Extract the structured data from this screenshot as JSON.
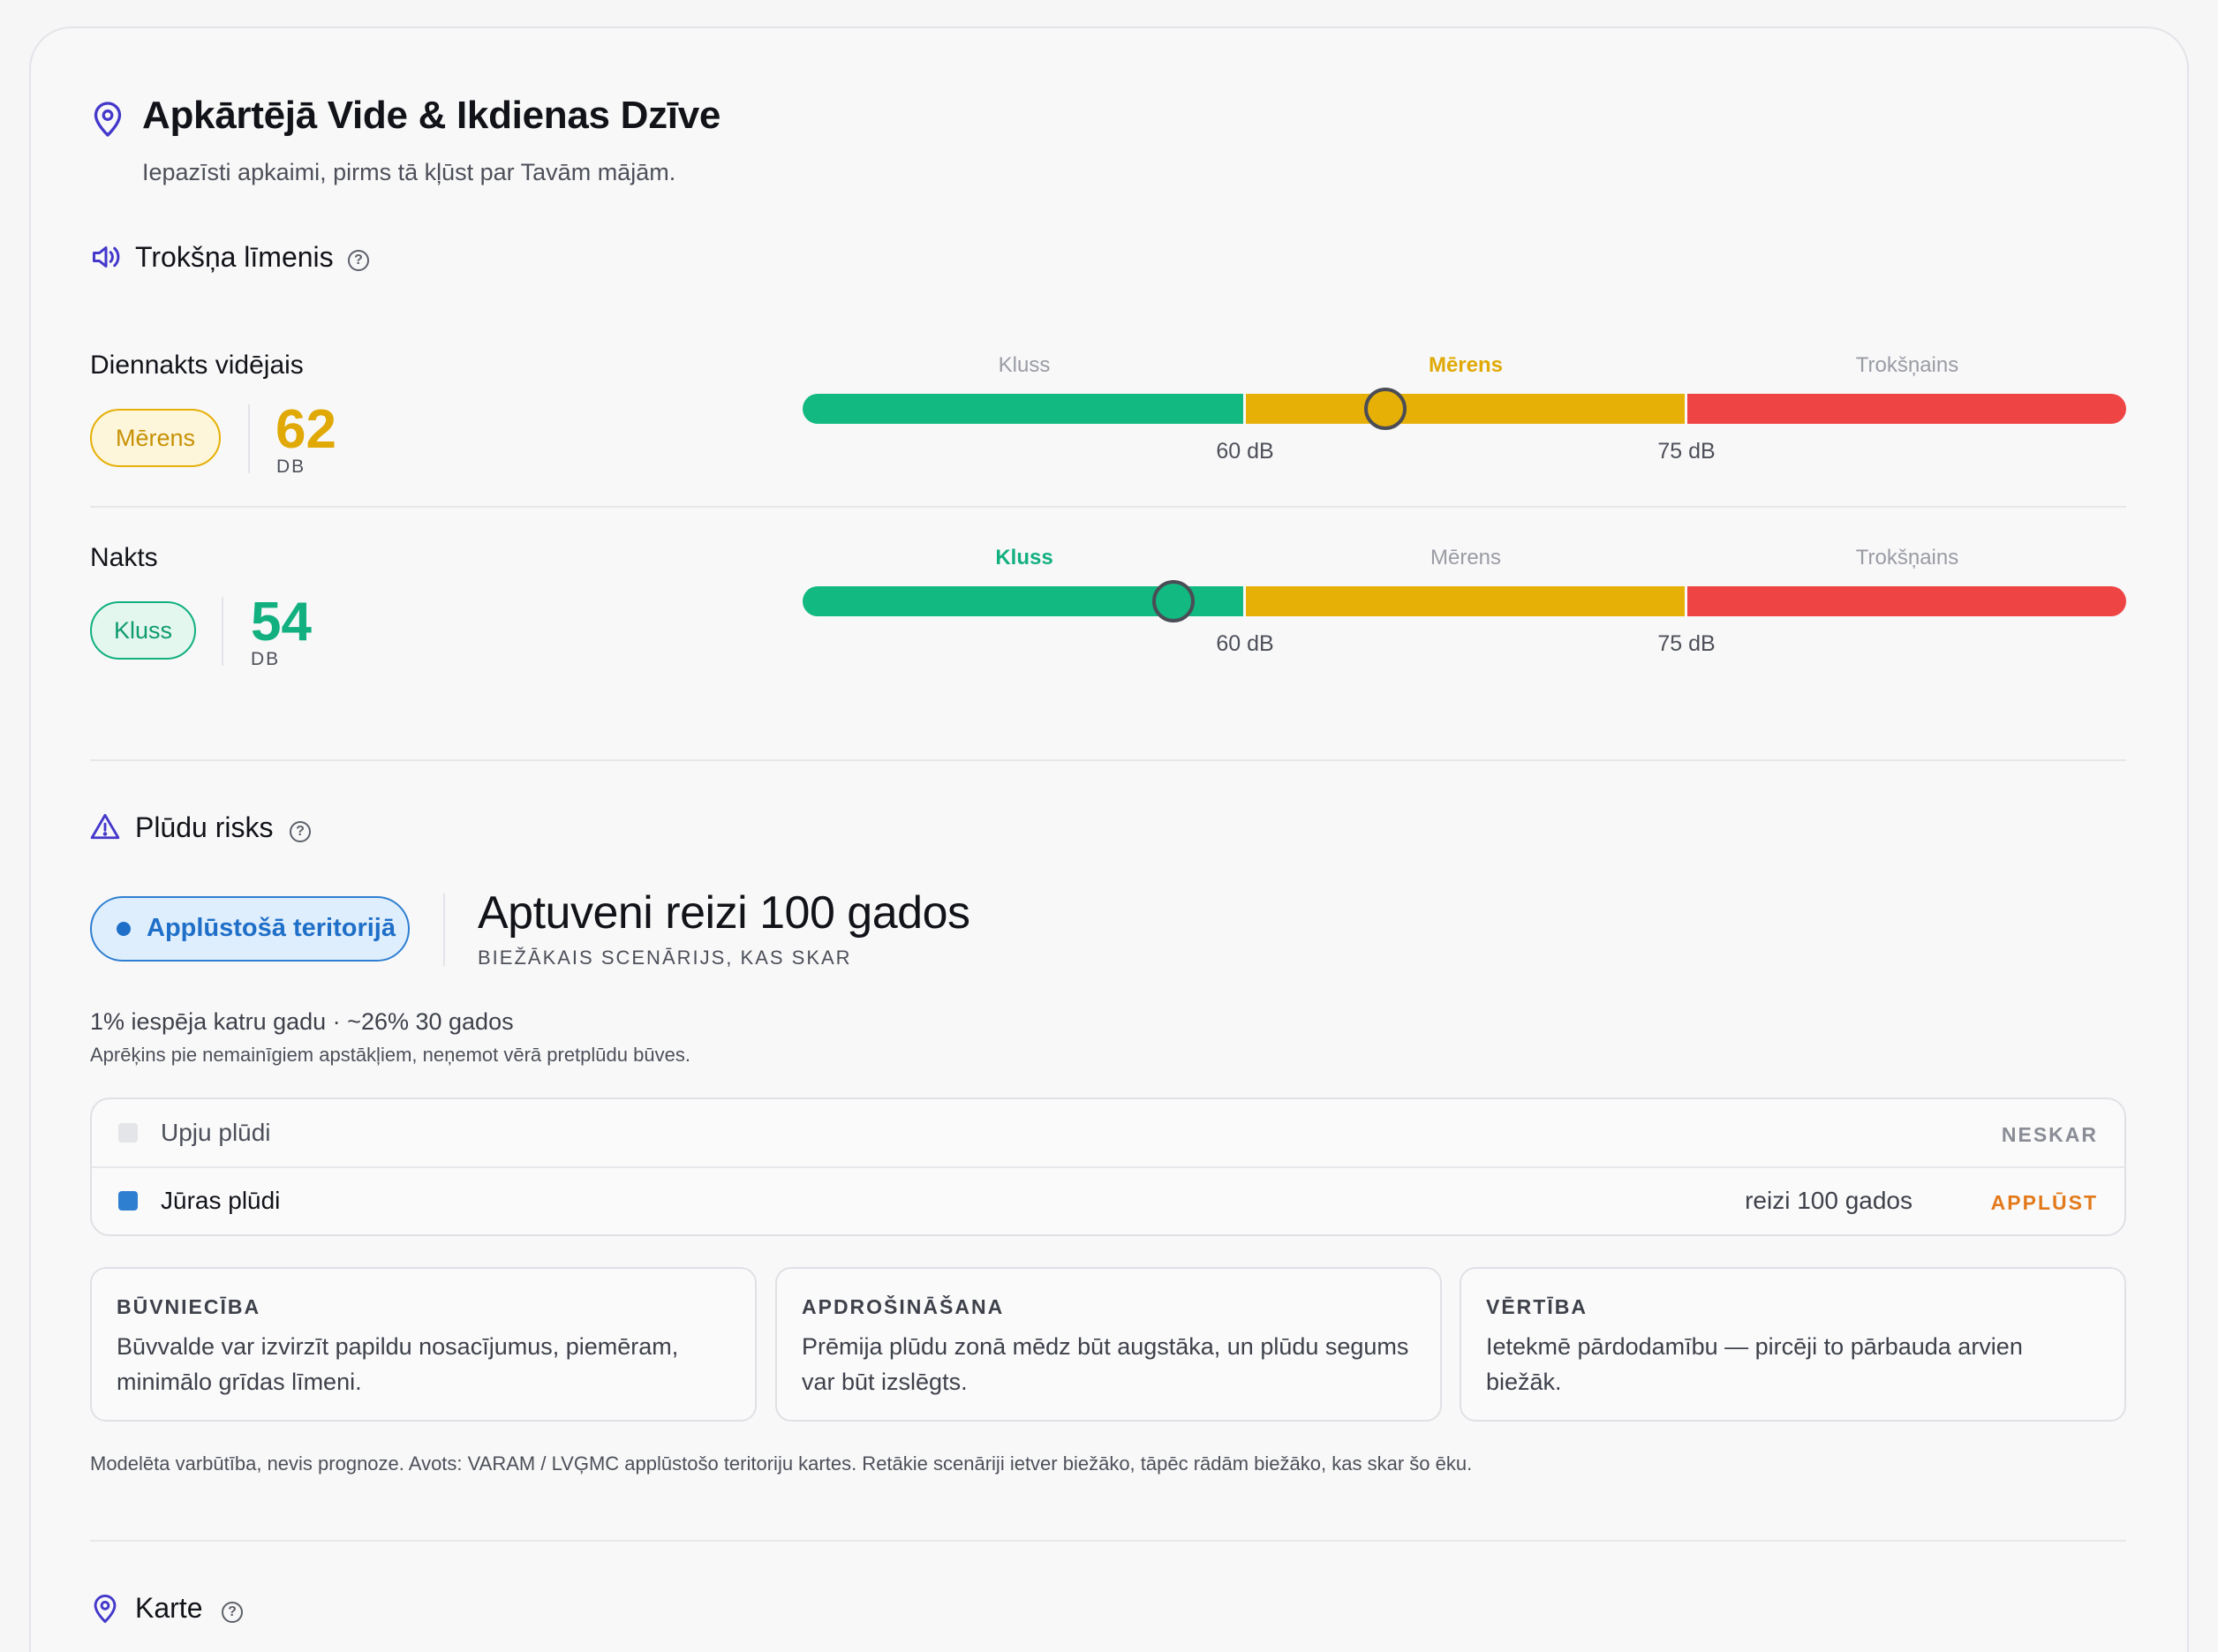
{
  "header": {
    "title": "Apkārtējā Vide & Ikdienas Dzīve",
    "subtitle": "Iepazīsti apkaimi, pirms tā kļūst par Tavām mājām.",
    "icon": "map-pin-icon"
  },
  "noise": {
    "section_title": "Trokšņa līmenis",
    "icon": "speaker-icon",
    "help": "?",
    "scale": {
      "labels": [
        "Kluss",
        "Mērens",
        "Trokšņains"
      ],
      "ticks": [
        "60 dB",
        "75 dB"
      ],
      "min_db": 40,
      "max_db": 90
    },
    "colors": {
      "quiet": "#12b981",
      "moderate": "#e6b007",
      "loud": "#ef4444"
    },
    "rows": [
      {
        "label": "Diennakts vidējais",
        "badge": "Mērens",
        "value": "62",
        "unit": "DB",
        "db": 62
      },
      {
        "label": "Nakts",
        "badge": "Kluss",
        "value": "54",
        "unit": "DB",
        "db": 54
      }
    ]
  },
  "flood": {
    "section_title": "Plūdu risks",
    "icon": "warning-triangle-icon",
    "help": "?",
    "badge": "Applūstošā teritorijā",
    "headline": "Aptuveni reizi 100 gados",
    "headline_caption": "BIEŽĀKAIS SCENĀRIJS, KAS SKAR",
    "probability": "1% iespēja katru gadu · ~26% 30 gados",
    "note": "Aprēķins pie nemainīgiem apstākļiem, neņemot vērā pretplūdu būves.",
    "table": [
      {
        "name": "Upju plūdi",
        "frequency": "",
        "status": "NESKAR",
        "color": "#e4e5e8"
      },
      {
        "name": "Jūras plūdi",
        "frequency": "reizi 100 gados",
        "status": "APPLŪST",
        "color": "#2f7fd1"
      }
    ],
    "status_colors": {
      "neskar": "#8a8d95",
      "applust": "#e27a1c"
    },
    "cards": [
      {
        "title": "BŪVNIECĪBA",
        "text": "Būvvalde var izvirzīt papildu nosacījumus, piemēram, minimālo grīdas līmeni."
      },
      {
        "title": "APDROŠINĀŠANA",
        "text": "Prēmija plūdu zonā mēdz būt augstāka, un plūdu segums var būt izslēgts."
      },
      {
        "title": "VĒRTĪBA",
        "text": "Ietekmē pārdodamību — pircēji to pārbauda arvien biežāk."
      }
    ],
    "footnote": "Modelēta varbūtība, nevis prognoze. Avots: VARAM / LVĢMC applūstošo teritoriju kartes. Retākie scenāriji ietver biežāko, tāpēc rādām biežāko, kas skar šo ēku."
  },
  "map": {
    "section_title": "Karte",
    "icon": "map-pin-icon",
    "help": "?"
  }
}
